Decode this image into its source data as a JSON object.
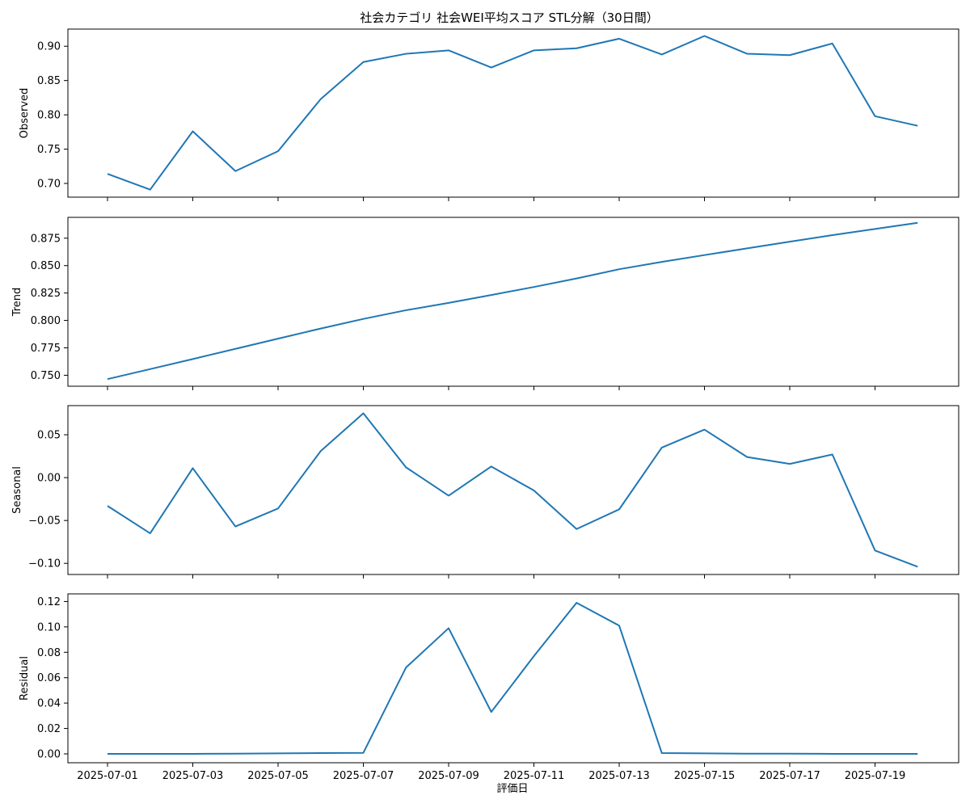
{
  "chart_data": {
    "type": "line",
    "title": "社会カテゴリ 社会WEI平均スコア STL分解（30日間）",
    "xlabel": "評価日",
    "x": [
      "2025-07-01",
      "2025-07-02",
      "2025-07-03",
      "2025-07-04",
      "2025-07-05",
      "2025-07-06",
      "2025-07-07",
      "2025-07-08",
      "2025-07-09",
      "2025-07-10",
      "2025-07-11",
      "2025-07-12",
      "2025-07-13",
      "2025-07-14",
      "2025-07-15",
      "2025-07-16",
      "2025-07-17",
      "2025-07-18",
      "2025-07-19",
      "2025-07-20"
    ],
    "x_ticks": [
      "2025-07-01",
      "2025-07-03",
      "2025-07-05",
      "2025-07-07",
      "2025-07-09",
      "2025-07-11",
      "2025-07-13",
      "2025-07-15",
      "2025-07-17",
      "2025-07-19"
    ],
    "color": "#1f77b4",
    "panels": [
      {
        "ylabel": "Observed",
        "ylim": [
          0.68,
          0.925
        ],
        "yticks": [
          0.7,
          0.75,
          0.8,
          0.85,
          0.9
        ],
        "ytick_labels": [
          "0.70",
          "0.75",
          "0.80",
          "0.85",
          "0.90"
        ],
        "values": [
          0.714,
          0.691,
          0.776,
          0.718,
          0.747,
          0.823,
          0.877,
          0.889,
          0.894,
          0.869,
          0.894,
          0.897,
          0.911,
          0.888,
          0.915,
          0.889,
          0.887,
          0.904,
          0.798,
          0.784
        ]
      },
      {
        "ylabel": "Trend",
        "ylim": [
          0.74,
          0.894
        ],
        "yticks": [
          0.75,
          0.775,
          0.8,
          0.825,
          0.85,
          0.875
        ],
        "ytick_labels": [
          "0.750",
          "0.775",
          "0.800",
          "0.825",
          "0.850",
          "0.875"
        ],
        "values": [
          0.7465,
          0.7556,
          0.7648,
          0.7741,
          0.7834,
          0.7926,
          0.8014,
          0.8093,
          0.816,
          0.8232,
          0.8305,
          0.8383,
          0.8467,
          0.8534,
          0.8596,
          0.8657,
          0.8718,
          0.8778,
          0.8834,
          0.889
        ]
      },
      {
        "ylabel": "Seasonal",
        "ylim": [
          -0.113,
          0.084
        ],
        "yticks": [
          -0.1,
          -0.05,
          0.0,
          0.05
        ],
        "ytick_labels": [
          "−0.10",
          "−0.05",
          "0.00",
          "0.05"
        ],
        "values": [
          -0.033,
          -0.065,
          0.011,
          -0.057,
          -0.036,
          0.031,
          0.075,
          0.012,
          -0.021,
          0.013,
          -0.015,
          -0.06,
          -0.037,
          0.035,
          0.056,
          0.024,
          0.016,
          0.027,
          -0.085,
          -0.104
        ]
      },
      {
        "ylabel": "Residual",
        "ylim": [
          -0.007,
          0.126
        ],
        "yticks": [
          0.0,
          0.02,
          0.04,
          0.06,
          0.08,
          0.1,
          0.12
        ],
        "ytick_labels": [
          "0.00",
          "0.02",
          "0.04",
          "0.06",
          "0.08",
          "0.10",
          "0.12"
        ],
        "values": [
          0.0,
          0.0,
          0.0,
          0.0002,
          0.0004,
          0.0006,
          0.0008,
          0.068,
          0.099,
          0.033,
          0.077,
          0.119,
          0.101,
          0.0006,
          0.0004,
          0.0002,
          0.0002,
          0.0,
          0.0,
          0.0
        ]
      }
    ]
  }
}
